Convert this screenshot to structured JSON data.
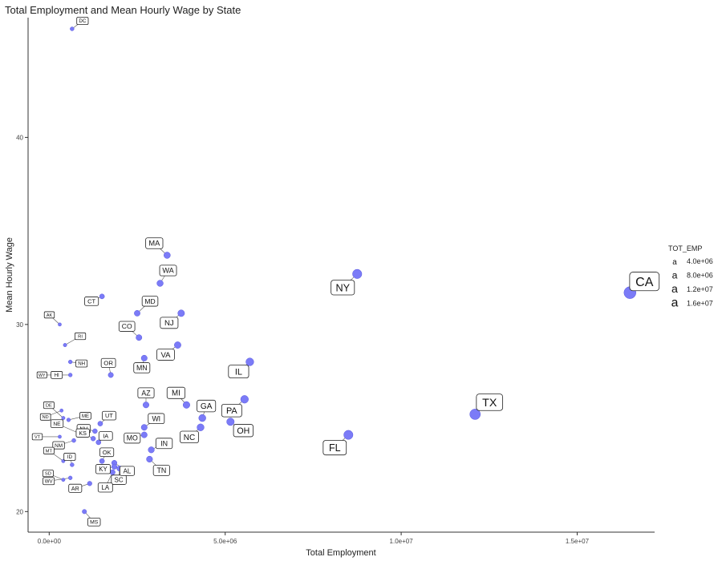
{
  "chart_data": {
    "type": "scatter",
    "title": "Total Employment and Mean Hourly Wage by State",
    "xlabel": "Total Employment",
    "ylabel": "Mean Hourly Wage",
    "xlim": [
      -600000,
      17200000
    ],
    "ylim": [
      18.9,
      46.4
    ],
    "x_ticks": [
      0,
      5000000,
      10000000,
      15000000
    ],
    "x_tick_labels": [
      "0.0e+00",
      "5.0e+06",
      "1.0e+07",
      "1.5e+07"
    ],
    "y_ticks": [
      20,
      30,
      40
    ],
    "y_tick_labels": [
      "20",
      "30",
      "40"
    ],
    "point_color": "#7b7bf7",
    "grid": false,
    "legend": {
      "title": "TOT_EMP",
      "placement": "right",
      "glyph": "a",
      "entries": [
        "4.0e+06",
        "8.0e+06",
        "1.2e+07",
        "1.6e+07"
      ],
      "values": [
        4000000,
        8000000,
        12000000,
        16000000
      ]
    },
    "points": [
      {
        "label": "CA",
        "x": 16500000,
        "y": 31.7
      },
      {
        "label": "TX",
        "x": 12100000,
        "y": 25.2
      },
      {
        "label": "NY",
        "x": 8750000,
        "y": 32.7
      },
      {
        "label": "FL",
        "x": 8500000,
        "y": 24.1
      },
      {
        "label": "IL",
        "x": 5700000,
        "y": 28.0
      },
      {
        "label": "PA",
        "x": 5550000,
        "y": 26.0
      },
      {
        "label": "OH",
        "x": 5150000,
        "y": 24.8
      },
      {
        "label": "GA",
        "x": 4350000,
        "y": 25.0
      },
      {
        "label": "NC",
        "x": 4300000,
        "y": 24.5
      },
      {
        "label": "MI",
        "x": 3900000,
        "y": 25.7
      },
      {
        "label": "NJ",
        "x": 3750000,
        "y": 30.6
      },
      {
        "label": "VA",
        "x": 3650000,
        "y": 28.9
      },
      {
        "label": "WA",
        "x": 3150000,
        "y": 32.2
      },
      {
        "label": "MA",
        "x": 3350000,
        "y": 33.7
      },
      {
        "label": "AZ",
        "x": 2750000,
        "y": 25.7
      },
      {
        "label": "IN",
        "x": 2900000,
        "y": 23.3
      },
      {
        "label": "TN",
        "x": 2850000,
        "y": 22.8
      },
      {
        "label": "MO",
        "x": 2700000,
        "y": 24.1
      },
      {
        "label": "MD",
        "x": 2500000,
        "y": 30.6
      },
      {
        "label": "WI",
        "x": 2700000,
        "y": 24.5
      },
      {
        "label": "CO",
        "x": 2550000,
        "y": 29.3
      },
      {
        "label": "MN",
        "x": 2700000,
        "y": 28.2
      },
      {
        "label": "SC",
        "x": 2000000,
        "y": 22.3
      },
      {
        "label": "AL",
        "x": 1850000,
        "y": 22.6
      },
      {
        "label": "LA",
        "x": 1800000,
        "y": 22.1
      },
      {
        "label": "KY",
        "x": 1850000,
        "y": 22.4
      },
      {
        "label": "OR",
        "x": 1750000,
        "y": 27.3
      },
      {
        "label": "OK",
        "x": 1500000,
        "y": 22.7
      },
      {
        "label": "CT",
        "x": 1500000,
        "y": 31.5
      },
      {
        "label": "UT",
        "x": 1450000,
        "y": 24.7
      },
      {
        "label": "IA",
        "x": 1400000,
        "y": 23.7
      },
      {
        "label": "NV",
        "x": 1300000,
        "y": 24.3
      },
      {
        "label": "AR",
        "x": 1150000,
        "y": 21.5
      },
      {
        "label": "MS",
        "x": 1000000,
        "y": 20.0
      },
      {
        "label": "KS",
        "x": 1250000,
        "y": 23.9
      },
      {
        "label": "NM",
        "x": 700000,
        "y": 23.8
      },
      {
        "label": "NE",
        "x": 950000,
        "y": 24.1
      },
      {
        "label": "WV",
        "x": 600000,
        "y": 21.8
      },
      {
        "label": "ID",
        "x": 650000,
        "y": 22.5
      },
      {
        "label": "HI",
        "x": 600000,
        "y": 27.3
      },
      {
        "label": "NH",
        "x": 600000,
        "y": 28.0
      },
      {
        "label": "ME",
        "x": 550000,
        "y": 24.9
      },
      {
        "label": "RI",
        "x": 450000,
        "y": 28.9
      },
      {
        "label": "DE",
        "x": 400000,
        "y": 25.0
      },
      {
        "label": "MT",
        "x": 400000,
        "y": 22.7
      },
      {
        "label": "SD",
        "x": 400000,
        "y": 21.7
      },
      {
        "label": "ND",
        "x": 350000,
        "y": 25.4
      },
      {
        "label": "AK",
        "x": 300000,
        "y": 30.0
      },
      {
        "label": "VT",
        "x": 300000,
        "y": 24.0
      },
      {
        "label": "WY",
        "x": 250000,
        "y": 27.3
      },
      {
        "label": "DC",
        "x": 650000,
        "y": 45.8
      }
    ]
  }
}
